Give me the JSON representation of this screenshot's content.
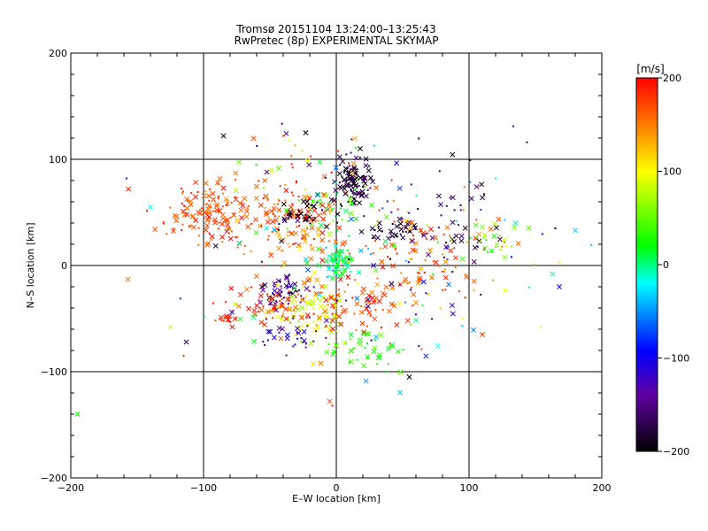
{
  "chart_data": {
    "type": "scatter",
    "title": "Tromsø 20151104 13:24:00–13:25:43",
    "subtitle": "RwPretec (8p) EXPERIMENTAL SKYMAP",
    "xlabel": "E–W location [km]",
    "ylabel": "N–S location [km]",
    "xlim": [
      -200,
      200
    ],
    "ylim": [
      -200,
      200
    ],
    "xticks": [
      -200,
      -100,
      0,
      100,
      200
    ],
    "yticks": [
      -200,
      -100,
      0,
      100,
      200
    ],
    "grid": true,
    "grid_lines": [
      -100,
      0,
      100
    ],
    "colorbar": {
      "label": "[m/s]",
      "range": [
        -200,
        200
      ],
      "ticks": [
        -200,
        -100,
        0,
        100,
        200
      ],
      "colormap": "black-purple-blue-cyan-green-yellow-red"
    },
    "markers": [
      "x",
      "dot"
    ],
    "clusters": [
      {
        "cx": -95,
        "cy": 50,
        "sx": 18,
        "sy": 16,
        "n": 130,
        "vmin": 150,
        "vmax": 200
      },
      {
        "cx": -45,
        "cy": 52,
        "sx": 18,
        "sy": 14,
        "n": 70,
        "vmin": 130,
        "vmax": 200
      },
      {
        "cx": -30,
        "cy": 30,
        "sx": 18,
        "sy": 15,
        "n": 80,
        "vmin": 120,
        "vmax": 200
      },
      {
        "cx": 12,
        "cy": 78,
        "sx": 7,
        "sy": 9,
        "n": 110,
        "vmin": -200,
        "vmax": -160
      },
      {
        "cx": 0,
        "cy": 55,
        "sx": 12,
        "sy": 10,
        "n": 45,
        "vmin": 0,
        "vmax": 80
      },
      {
        "cx": -25,
        "cy": 48,
        "sx": 14,
        "sy": 6,
        "n": 35,
        "vmin": -200,
        "vmax": -170
      },
      {
        "cx": 45,
        "cy": 35,
        "sx": 12,
        "sy": 6,
        "n": 35,
        "vmin": -200,
        "vmax": -160
      },
      {
        "cx": 90,
        "cy": 40,
        "sx": 18,
        "sy": 22,
        "n": 40,
        "vmin": -200,
        "vmax": -150
      },
      {
        "cx": 2,
        "cy": 2,
        "sx": 5,
        "sy": 8,
        "n": 70,
        "vmin": -20,
        "vmax": 30
      },
      {
        "cx": 60,
        "cy": 10,
        "sx": 35,
        "sy": 25,
        "n": 100,
        "vmin": 130,
        "vmax": 200
      },
      {
        "cx": -40,
        "cy": -25,
        "sx": 8,
        "sy": 8,
        "n": 55,
        "vmin": -200,
        "vmax": -110
      },
      {
        "cx": -20,
        "cy": -42,
        "sx": 14,
        "sy": 12,
        "n": 80,
        "vmin": 60,
        "vmax": 120
      },
      {
        "cx": 10,
        "cy": -40,
        "sx": 22,
        "sy": 14,
        "n": 80,
        "vmin": 150,
        "vmax": 200
      },
      {
        "cx": -55,
        "cy": -35,
        "sx": 16,
        "sy": 12,
        "n": 55,
        "vmin": 150,
        "vmax": 200
      },
      {
        "cx": 20,
        "cy": -80,
        "sx": 15,
        "sy": 10,
        "n": 40,
        "vmin": 10,
        "vmax": 60
      },
      {
        "cx": -35,
        "cy": -70,
        "sx": 14,
        "sy": 10,
        "n": 30,
        "vmin": -160,
        "vmax": -90
      },
      {
        "cx": -82,
        "cy": -50,
        "sx": 4,
        "sy": 3,
        "n": 15,
        "vmin": 170,
        "vmax": 200
      },
      {
        "cx": 30,
        "cy": 5,
        "sx": 60,
        "sy": 50,
        "n": 160,
        "vmin": -200,
        "vmax": 200
      },
      {
        "cx": 120,
        "cy": 25,
        "sx": 12,
        "sy": 10,
        "n": 20,
        "vmin": 10,
        "vmax": 80
      },
      {
        "cx": -10,
        "cy": 100,
        "sx": 30,
        "sy": 12,
        "n": 30,
        "vmin": -200,
        "vmax": 200
      }
    ],
    "outliers": [
      {
        "x": -195,
        "y": -140,
        "v": 20
      },
      {
        "x": -157,
        "y": -13,
        "v": 150
      },
      {
        "x": -158,
        "y": 82,
        "v": -120
      },
      {
        "x": -140,
        "y": 55,
        "v": -20
      },
      {
        "x": -125,
        "y": -58,
        "v": 80
      },
      {
        "x": -115,
        "y": -85,
        "v": 180
      },
      {
        "x": -113,
        "y": -72,
        "v": -180
      },
      {
        "x": 180,
        "y": 33,
        "v": -30
      },
      {
        "x": 168,
        "y": 3,
        "v": 110
      },
      {
        "x": 168,
        "y": -20,
        "v": -90
      },
      {
        "x": 163,
        "y": -8,
        "v": -10
      },
      {
        "x": 165,
        "y": 35,
        "v": -200
      },
      {
        "x": 145,
        "y": 35,
        "v": 50
      },
      {
        "x": 135,
        "y": 40,
        "v": -10
      },
      {
        "x": 120,
        "y": 82,
        "v": -20
      },
      {
        "x": 110,
        "y": -65,
        "v": 180
      },
      {
        "x": -5,
        "y": -128,
        "v": 170
      },
      {
        "x": -3,
        "y": -132,
        "v": 190
      },
      {
        "x": 18,
        "y": 110,
        "v": -200
      },
      {
        "x": -23,
        "y": 125,
        "v": -200
      },
      {
        "x": -40,
        "y": 122,
        "v": 180
      },
      {
        "x": -85,
        "y": 122,
        "v": -200
      },
      {
        "x": 55,
        "y": -105,
        "v": -200
      },
      {
        "x": 38,
        "y": -100,
        "v": 20
      }
    ]
  }
}
